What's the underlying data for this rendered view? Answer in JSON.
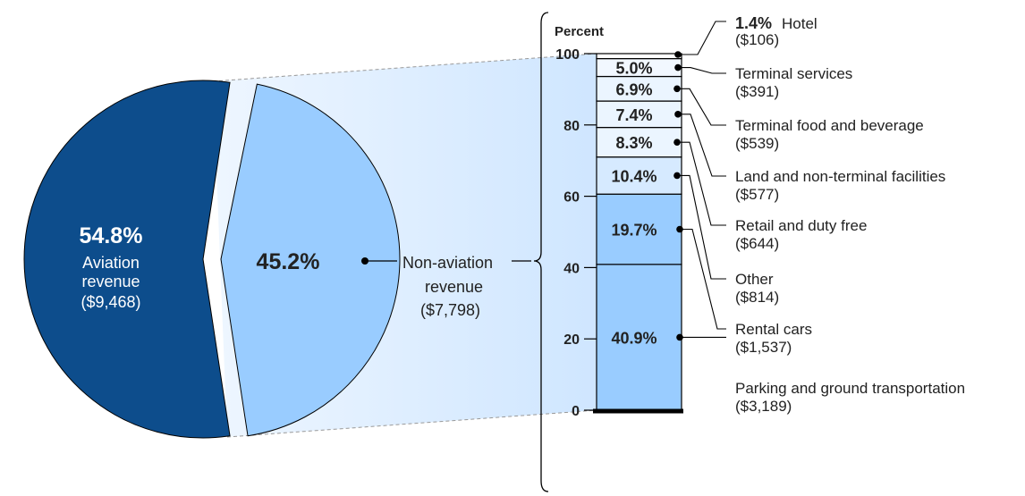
{
  "chart_data": [
    {
      "type": "pie",
      "slices": [
        {
          "percent_label": "54.8%",
          "name": "Aviation\nrevenue",
          "amount": "($9,468)",
          "value": 54.8,
          "color": "#0d4d8c"
        },
        {
          "percent_label": "45.2%",
          "name": "Non-aviation\nrevenue",
          "amount": "($7,798)",
          "value": 45.2,
          "color": "#99ccff"
        }
      ]
    },
    {
      "type": "bar",
      "stacked": true,
      "axis_label": "Percent",
      "ylim": [
        0,
        100
      ],
      "ticks": [
        "0",
        "20",
        "40",
        "60",
        "80",
        "100"
      ],
      "tick_values": [
        0,
        20,
        40,
        60,
        80,
        100
      ],
      "bar_color": "#99ccff",
      "top_color": "#ebf5ff",
      "segments": [
        {
          "value": 40.9,
          "percent_label": "40.9%",
          "name": "Parking and ground transportation",
          "amount": "($3,189)"
        },
        {
          "value": 19.7,
          "percent_label": "19.7%",
          "name": "Rental cars",
          "amount": "($1,537)"
        },
        {
          "value": 10.4,
          "percent_label": "10.4%",
          "name": "Other",
          "amount": "($814)"
        },
        {
          "value": 8.3,
          "percent_label": "8.3%",
          "name": "Retail and duty free",
          "amount": "($644)"
        },
        {
          "value": 7.4,
          "percent_label": "7.4%",
          "name": "Land and non-terminal facilities",
          "amount": "($577)"
        },
        {
          "value": 6.9,
          "percent_label": "6.9%",
          "name": "Terminal food and beverage",
          "amount": "($539)"
        },
        {
          "value": 5.0,
          "percent_label": "5.0%",
          "name": "Terminal services",
          "amount": "($391)"
        },
        {
          "value": 1.4,
          "percent_label": "1.4%",
          "name": "Hotel",
          "amount": "($106)"
        }
      ]
    }
  ]
}
